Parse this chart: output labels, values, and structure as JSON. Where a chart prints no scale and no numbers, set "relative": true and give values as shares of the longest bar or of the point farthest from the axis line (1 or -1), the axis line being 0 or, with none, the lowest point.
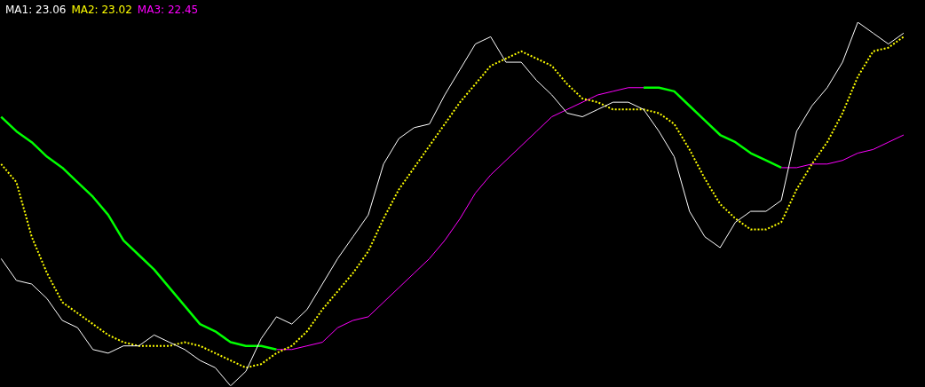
{
  "chart_data": {
    "type": "line",
    "relative": true,
    "legend": "top left",
    "marker": "none",
    "categories": [
      null,
      null,
      null,
      null,
      null,
      null,
      null,
      null,
      null,
      null,
      null,
      null,
      null,
      null,
      null,
      null,
      null,
      null,
      null,
      null,
      null,
      null,
      null,
      null,
      null,
      null,
      null,
      null,
      null,
      null,
      null,
      null,
      null,
      null,
      null,
      null,
      null,
      null,
      null,
      null,
      null,
      null,
      null,
      null,
      null,
      null,
      null,
      null,
      null,
      null,
      null,
      null,
      null,
      null,
      null,
      null,
      null,
      null,
      null,
      null
    ],
    "series": [
      {
        "name": "MA1: 23.06",
        "color": "#ffffff",
        "line_style": "solid",
        "values": [
          0.35,
          0.29,
          0.28,
          0.24,
          0.18,
          0.16,
          0.1,
          0.09,
          0.11,
          0.11,
          0.14,
          0.12,
          0.1,
          0.07,
          0.05,
          0,
          0.04,
          0.13,
          0.19,
          0.17,
          0.21,
          0.28,
          0.35,
          0.41,
          0.47,
          0.61,
          0.68,
          0.71,
          0.72,
          0.8,
          0.87,
          0.94,
          0.96,
          0.89,
          0.89,
          0.84,
          0.8,
          0.75,
          0.74,
          0.76,
          0.78,
          0.78,
          0.76,
          0.7,
          0.63,
          0.48,
          0.41,
          0.38,
          0.45,
          0.48,
          0.48,
          0.51,
          0.7,
          0.77,
          0.82,
          0.89,
          1,
          0.97,
          0.94,
          0.97
        ]
      },
      {
        "name": "MA2: 23.02",
        "color": "#ffff00",
        "line_style": "dotted",
        "values": [
          0.61,
          0.56,
          0.41,
          0.31,
          0.23,
          0.2,
          0.17,
          0.14,
          0.12,
          0.11,
          0.11,
          0.11,
          0.12,
          0.11,
          0.09,
          0.07,
          0.05,
          0.06,
          0.09,
          0.11,
          0.15,
          0.21,
          0.26,
          0.31,
          0.37,
          0.46,
          0.54,
          0.6,
          0.66,
          0.72,
          0.78,
          0.83,
          0.88,
          0.9,
          0.92,
          0.9,
          0.88,
          0.83,
          0.79,
          0.78,
          0.76,
          0.76,
          0.76,
          0.75,
          0.72,
          0.65,
          0.57,
          0.5,
          0.46,
          0.43,
          0.43,
          0.45,
          0.54,
          0.61,
          0.67,
          0.75,
          0.85,
          0.92,
          0.93,
          0.96
        ]
      },
      {
        "name": "MA3: 22.45",
        "color": "#ff00ff",
        "line_style": "solid",
        "values": [
          null,
          null,
          null,
          null,
          null,
          null,
          null,
          null,
          null,
          null,
          null,
          null,
          null,
          null,
          null,
          null,
          null,
          null,
          0.1,
          0.1,
          0.11,
          0.12,
          0.16,
          0.18,
          0.19,
          0.23,
          0.27,
          0.31,
          0.35,
          0.4,
          0.46,
          0.53,
          0.58,
          0.62,
          0.66,
          0.7,
          0.74,
          0.76,
          0.78,
          0.8,
          0.81,
          0.82,
          0.82,
          null,
          null,
          null,
          null,
          null,
          null,
          null,
          null,
          0.6,
          0.6,
          0.61,
          0.61,
          0.62,
          0.64,
          0.65,
          0.67,
          0.69
        ]
      },
      {
        "color": "#00ff00",
        "line_style": "solid",
        "values": [
          0.74,
          0.7,
          0.67,
          0.63,
          0.6,
          0.56,
          0.52,
          0.47,
          0.4,
          0.36,
          0.32,
          0.27,
          0.22,
          0.17,
          0.15,
          0.12,
          0.11,
          0.11,
          0.1,
          null,
          null,
          null,
          null,
          null,
          null,
          null,
          null,
          null,
          null,
          null,
          null,
          null,
          null,
          null,
          null,
          null,
          null,
          null,
          null,
          null,
          null,
          null,
          0.82,
          0.82,
          0.81,
          0.77,
          0.73,
          0.69,
          0.67,
          0.64,
          0.62,
          0.6,
          null,
          null,
          null,
          null,
          null,
          null,
          null,
          null
        ]
      }
    ]
  }
}
